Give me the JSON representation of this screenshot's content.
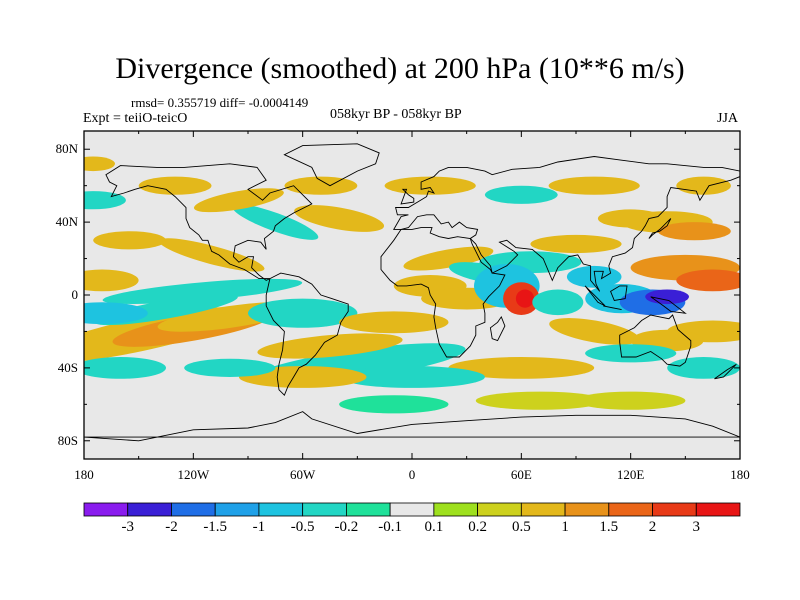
{
  "figure": {
    "title": "Divergence (smoothed) at 200 hPa (10**6 m/s)",
    "stats": "rmsd= 0.355719 diff= -0.0004149",
    "experiment": "Expt = teiiO-teicO",
    "period": "058kyr BP - 058kyr BP",
    "season": "JJA"
  },
  "chart_data": {
    "type": "heatmap",
    "map_projection": "cylindrical equidistant",
    "xlim": [
      -180,
      180
    ],
    "ylim": [
      -90,
      90
    ],
    "x_tick_labels": [
      "180",
      "120W",
      "60W",
      "0",
      "60E",
      "120E",
      "180"
    ],
    "y_tick_labels": [
      "80N",
      "40N",
      "0",
      "40S",
      "80S"
    ],
    "y_tick_values": [
      80,
      40,
      0,
      -40,
      -80
    ],
    "colorbar": {
      "labels": [
        "-3",
        "-2",
        "-1.5",
        "-1",
        "-0.5",
        "-0.2",
        "-0.1",
        "0.1",
        "0.2",
        "0.5",
        "1",
        "1.5",
        "2",
        "3"
      ],
      "colors": [
        "#8a1cee",
        "#3a1fd6",
        "#1f6ee6",
        "#1fa1e8",
        "#1ec3e0",
        "#22d6c4",
        "#1fe19a",
        "#e8e8e8",
        "#9ee01e",
        "#cdd11d",
        "#e3b81b",
        "#e8921a",
        "#ea6518",
        "#e83a17",
        "#e81515"
      ]
    },
    "features": [
      {
        "name": "strong convergence (negative)",
        "lon": 130,
        "lat": -3,
        "value": -2
      },
      {
        "name": "strong divergence (positive)",
        "lon": 60,
        "lat": -2,
        "value": 3
      },
      {
        "name": "positive anomaly band",
        "lon": 155,
        "lat": 12,
        "value": 1
      },
      {
        "name": "positive anomaly band",
        "lon": -140,
        "lat": -20,
        "value": 0.5
      },
      {
        "name": "negative anomaly band",
        "lon": -110,
        "lat": 5,
        "value": -0.5
      },
      {
        "name": "negative anomaly band",
        "lon": -20,
        "lat": -40,
        "value": -0.5
      },
      {
        "name": "positive anomaly band",
        "lon": 30,
        "lat": 0,
        "value": 0.5
      },
      {
        "name": "positive anomaly band",
        "lon": 80,
        "lat": -58,
        "value": 0.2
      }
    ]
  }
}
